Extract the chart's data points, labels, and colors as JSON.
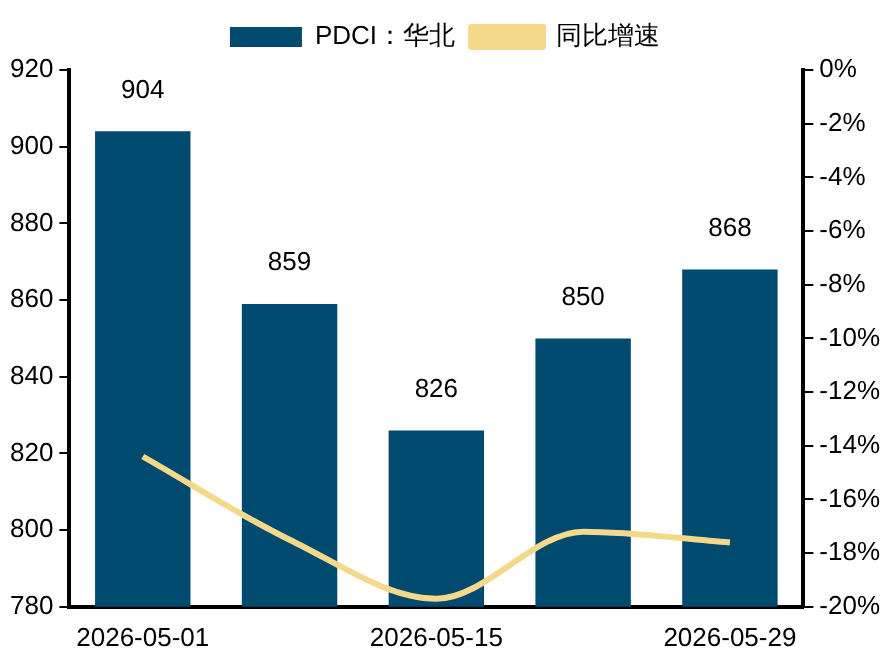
{
  "chart_data": {
    "type": "bar",
    "categories": [
      "2026-05-01",
      null,
      "2026-05-15",
      null,
      "2026-05-29"
    ],
    "series": [
      {
        "name": "PDCI：华北",
        "color": "#004a70",
        "values": [
          904,
          859,
          826,
          850,
          868
        ],
        "value_labels": [
          "904",
          "859",
          "826",
          "850",
          "868"
        ]
      },
      {
        "name": "同比增速",
        "type": "line",
        "axis": "y2",
        "color": "#f5d98b",
        "values": [
          -14.4,
          -17.5,
          -19.7,
          -17.2,
          -17.6
        ]
      }
    ],
    "ylim": [
      780,
      920
    ],
    "yticks": [
      780,
      800,
      820,
      840,
      860,
      880,
      900,
      920
    ],
    "y2lim": [
      -20,
      0
    ],
    "y2ticks": [
      {
        "value": -20,
        "label": "-20%"
      },
      {
        "value": -18,
        "label": "-18%"
      },
      {
        "value": -16,
        "label": "-16%"
      },
      {
        "value": -14,
        "label": "-14%"
      },
      {
        "value": -12,
        "label": "-12%"
      },
      {
        "value": -10,
        "label": "-10%"
      },
      {
        "value": -8,
        "label": "-8%"
      },
      {
        "value": -6,
        "label": "-6%"
      },
      {
        "value": -4,
        "label": "-4%"
      },
      {
        "value": -2,
        "label": "-2%"
      },
      {
        "value": 0,
        "label": "0%"
      }
    ],
    "legend": "top",
    "grid": false
  }
}
